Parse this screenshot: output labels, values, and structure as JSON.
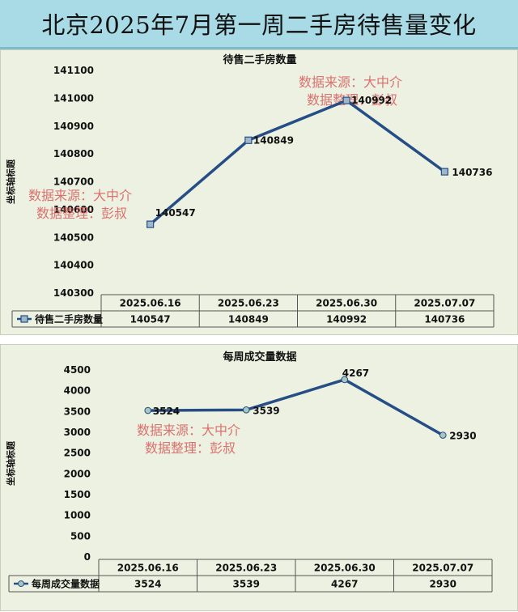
{
  "header": {
    "title": "北京2025年7月第一周二手房待售量变化"
  },
  "watermark": {
    "line1": "数据来源：大中介",
    "line2": "数据整理：彭叔"
  },
  "colors": {
    "line": "#264e86",
    "marker_fill": "#9fb7c9",
    "marker2_fill": "#a8c7c0",
    "watermark": "#d65a5a"
  },
  "chart_data": [
    {
      "type": "line",
      "title": "待售二手房数量",
      "ylabel": "坐标轴标题",
      "categories": [
        "2025.06.16",
        "2025.06.23",
        "2025.06.30",
        "2025.07.07"
      ],
      "series": [
        {
          "name": "待售二手房数量",
          "values": [
            140547,
            140849,
            140992,
            140736
          ]
        }
      ],
      "ylim": [
        140300,
        141100
      ],
      "yticks": [
        141100,
        141000,
        140900,
        140800,
        140700,
        140600,
        140500,
        140400,
        140300
      ],
      "marker": "square",
      "data_table": true,
      "grid": false
    },
    {
      "type": "line",
      "title": "每周成交量数据",
      "ylabel": "坐标轴标题",
      "categories": [
        "2025.06.16",
        "2025.06.23",
        "2025.06.30",
        "2025.07.07"
      ],
      "series": [
        {
          "name": "每周成交量数据",
          "values": [
            3524,
            3539,
            4267,
            2930
          ]
        }
      ],
      "ylim": [
        0,
        4500
      ],
      "yticks": [
        4500,
        4000,
        3500,
        3000,
        2500,
        2000,
        1500,
        1000,
        500,
        0
      ],
      "marker": "circle",
      "data_table": true,
      "grid": false
    }
  ]
}
